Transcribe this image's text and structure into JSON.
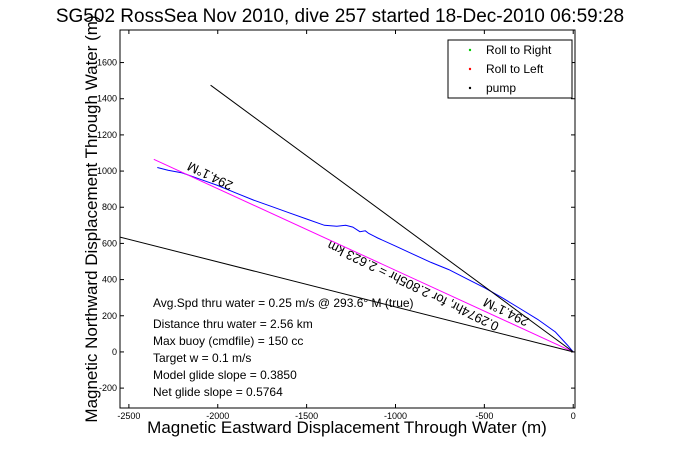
{
  "chart_data": {
    "type": "line",
    "title": "SG502 RossSea Nov 2010, dive 257 started 18-Dec-2010 06:59:28",
    "xlabel": "Magnetic Eastward Displacement Through Water (m)",
    "ylabel": "Magnetic Northward Displacement Through Water (m)",
    "xlim": [
      -2550,
      10
    ],
    "ylim": [
      -310,
      1780
    ],
    "xticks": [
      -2500,
      -2000,
      -1500,
      -1000,
      -500,
      0
    ],
    "yticks": [
      -200,
      0,
      200,
      400,
      600,
      800,
      1000,
      1200,
      1400,
      1600
    ],
    "grid": false,
    "legend_position": "top-right",
    "legend": [
      {
        "label": "Roll to Right",
        "color": "#00cc00",
        "marker": "dot"
      },
      {
        "label": "Roll to Left",
        "color": "#ff0000",
        "marker": "dot"
      },
      {
        "label": "pump",
        "color": "#000000",
        "marker": "dot"
      }
    ],
    "series": [
      {
        "color": "#0000ff",
        "style": "solid",
        "x": [
          -2340,
          -2280,
          -2200,
          -2100,
          -2000,
          -1900,
          -1800,
          -1700,
          -1600,
          -1500,
          -1400,
          -1330,
          -1280,
          -1240,
          -1200,
          -1170,
          -1150,
          -1120,
          -1100,
          -1000,
          -900,
          -800,
          -700,
          -600,
          -500,
          -400,
          -300,
          -200,
          -100,
          -30,
          0
        ],
        "y": [
          1020,
          1005,
          990,
          955,
          920,
          880,
          840,
          805,
          770,
          735,
          700,
          695,
          700,
          690,
          665,
          670,
          655,
          640,
          630,
          585,
          540,
          495,
          455,
          405,
          355,
          300,
          240,
          180,
          110,
          35,
          0
        ]
      },
      {
        "color": "#ff00ff",
        "style": "solid",
        "x": [
          -2360,
          0
        ],
        "y": [
          1065,
          0
        ]
      },
      {
        "color": "#000000",
        "style": "solid",
        "x": [
          -2040,
          0
        ],
        "y": [
          1475,
          0
        ]
      },
      {
        "color": "#000000",
        "style": "solid",
        "x": [
          -2550,
          0
        ],
        "y": [
          635,
          0
        ]
      }
    ],
    "annotations": [
      {
        "text": "294.1°M"
      },
      {
        "text": "0.2974hr, for 2.805hr = 2.623 km"
      },
      {
        "text": "294.1°M"
      },
      {
        "text": "Avg.Spd thru water =  0.25 m/s @ 293.6° M (true)"
      },
      {
        "text": "Distance thru water =  2.56 km"
      },
      {
        "text": "Max buoy (cmdfile) = 150 cc"
      },
      {
        "text": "Target w = 0.1 m/s"
      },
      {
        "text": "Model glide slope = 0.3850"
      },
      {
        "text": "Net glide slope = 0.5764"
      }
    ]
  }
}
